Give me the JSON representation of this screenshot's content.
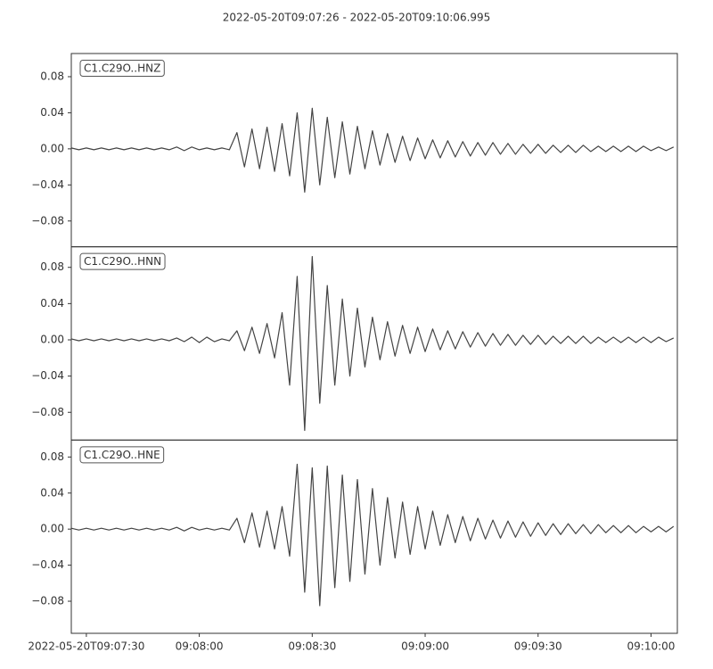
{
  "title": "2022-05-20T09:07:26  -  2022-05-20T09:10:06.995",
  "chart_data": [
    {
      "type": "line",
      "label": "C1.C29O..HNZ",
      "x": [
        "2022-05-20T09:07:26",
        "2022-05-20T09:07:28",
        "2022-05-20T09:07:30",
        "2022-05-20T09:07:32",
        "2022-05-20T09:07:34",
        "2022-05-20T09:07:36",
        "2022-05-20T09:07:38",
        "2022-05-20T09:07:40",
        "2022-05-20T09:07:42",
        "2022-05-20T09:07:44",
        "2022-05-20T09:07:46",
        "2022-05-20T09:07:48",
        "2022-05-20T09:07:50",
        "2022-05-20T09:07:52",
        "2022-05-20T09:07:54",
        "2022-05-20T09:07:56",
        "2022-05-20T09:07:58",
        "2022-05-20T09:08:00",
        "2022-05-20T09:08:02",
        "2022-05-20T09:08:04",
        "2022-05-20T09:08:06",
        "2022-05-20T09:08:08",
        "2022-05-20T09:08:10",
        "2022-05-20T09:08:12",
        "2022-05-20T09:08:14",
        "2022-05-20T09:08:16",
        "2022-05-20T09:08:18",
        "2022-05-20T09:08:20",
        "2022-05-20T09:08:22",
        "2022-05-20T09:08:24",
        "2022-05-20T09:08:26",
        "2022-05-20T09:08:28",
        "2022-05-20T09:08:30",
        "2022-05-20T09:08:32",
        "2022-05-20T09:08:34",
        "2022-05-20T09:08:36",
        "2022-05-20T09:08:38",
        "2022-05-20T09:08:40",
        "2022-05-20T09:08:42",
        "2022-05-20T09:08:44",
        "2022-05-20T09:08:46",
        "2022-05-20T09:08:48",
        "2022-05-20T09:08:50",
        "2022-05-20T09:08:52",
        "2022-05-20T09:08:54",
        "2022-05-20T09:08:56",
        "2022-05-20T09:08:58",
        "2022-05-20T09:09:00",
        "2022-05-20T09:09:02",
        "2022-05-20T09:09:04",
        "2022-05-20T09:09:06",
        "2022-05-20T09:09:08",
        "2022-05-20T09:09:10",
        "2022-05-20T09:09:12",
        "2022-05-20T09:09:14",
        "2022-05-20T09:09:16",
        "2022-05-20T09:09:18",
        "2022-05-20T09:09:20",
        "2022-05-20T09:09:22",
        "2022-05-20T09:09:24",
        "2022-05-20T09:09:26",
        "2022-05-20T09:09:28",
        "2022-05-20T09:09:30",
        "2022-05-20T09:09:32",
        "2022-05-20T09:09:34",
        "2022-05-20T09:09:36",
        "2022-05-20T09:09:38",
        "2022-05-20T09:09:40",
        "2022-05-20T09:09:42",
        "2022-05-20T09:09:44",
        "2022-05-20T09:09:46",
        "2022-05-20T09:09:48",
        "2022-05-20T09:09:50",
        "2022-05-20T09:09:52",
        "2022-05-20T09:09:54",
        "2022-05-20T09:09:56",
        "2022-05-20T09:09:58",
        "2022-05-20T09:10:00",
        "2022-05-20T09:10:02",
        "2022-05-20T09:10:04",
        "2022-05-20T09:10:06"
      ],
      "series": [
        {
          "color": "#444444",
          "values": [
            0.001,
            -0.001,
            0.001,
            -0.001,
            0.001,
            -0.001,
            0.001,
            -0.001,
            0.001,
            -0.001,
            0.001,
            -0.001,
            0.001,
            -0.001,
            0.002,
            -0.002,
            0.002,
            -0.001,
            0.001,
            -0.001,
            0.001,
            -0.001,
            0.018,
            -0.02,
            0.022,
            -0.022,
            0.024,
            -0.025,
            0.028,
            -0.03,
            0.04,
            -0.048,
            0.045,
            -0.04,
            0.035,
            -0.032,
            0.03,
            -0.028,
            0.025,
            -0.022,
            0.02,
            -0.018,
            0.017,
            -0.015,
            0.014,
            -0.013,
            0.012,
            -0.011,
            0.01,
            -0.01,
            0.009,
            -0.009,
            0.008,
            -0.008,
            0.007,
            -0.007,
            0.007,
            -0.006,
            0.006,
            -0.006,
            0.005,
            -0.005,
            0.005,
            -0.005,
            0.004,
            -0.004,
            0.004,
            -0.004,
            0.004,
            -0.003,
            0.003,
            -0.003,
            0.003,
            -0.003,
            0.003,
            -0.003,
            0.003,
            -0.002,
            0.002,
            -0.002,
            0.002
          ]
        }
      ],
      "xlim": [
        "2022-05-20T09:07:26",
        "2022-05-20T09:10:06.995"
      ],
      "ylim": [
        -0.1086,
        0.1057
      ],
      "yticks": [
        {
          "value": -0.08,
          "label": "−0.08"
        },
        {
          "value": -0.04,
          "label": "−0.04"
        },
        {
          "value": 0,
          "label": "0.00"
        },
        {
          "value": 0.04,
          "label": "0.04"
        },
        {
          "value": 0.08,
          "label": "0.08"
        }
      ]
    },
    {
      "type": "line",
      "label": "C1.C29O..HNN",
      "x": [
        "2022-05-20T09:07:26",
        "2022-05-20T09:07:28",
        "2022-05-20T09:07:30",
        "2022-05-20T09:07:32",
        "2022-05-20T09:07:34",
        "2022-05-20T09:07:36",
        "2022-05-20T09:07:38",
        "2022-05-20T09:07:40",
        "2022-05-20T09:07:42",
        "2022-05-20T09:07:44",
        "2022-05-20T09:07:46",
        "2022-05-20T09:07:48",
        "2022-05-20T09:07:50",
        "2022-05-20T09:07:52",
        "2022-05-20T09:07:54",
        "2022-05-20T09:07:56",
        "2022-05-20T09:07:58",
        "2022-05-20T09:08:00",
        "2022-05-20T09:08:02",
        "2022-05-20T09:08:04",
        "2022-05-20T09:08:06",
        "2022-05-20T09:08:08",
        "2022-05-20T09:08:10",
        "2022-05-20T09:08:12",
        "2022-05-20T09:08:14",
        "2022-05-20T09:08:16",
        "2022-05-20T09:08:18",
        "2022-05-20T09:08:20",
        "2022-05-20T09:08:22",
        "2022-05-20T09:08:24",
        "2022-05-20T09:08:26",
        "2022-05-20T09:08:28",
        "2022-05-20T09:08:30",
        "2022-05-20T09:08:32",
        "2022-05-20T09:08:34",
        "2022-05-20T09:08:36",
        "2022-05-20T09:08:38",
        "2022-05-20T09:08:40",
        "2022-05-20T09:08:42",
        "2022-05-20T09:08:44",
        "2022-05-20T09:08:46",
        "2022-05-20T09:08:48",
        "2022-05-20T09:08:50",
        "2022-05-20T09:08:52",
        "2022-05-20T09:08:54",
        "2022-05-20T09:08:56",
        "2022-05-20T09:08:58",
        "2022-05-20T09:09:00",
        "2022-05-20T09:09:02",
        "2022-05-20T09:09:04",
        "2022-05-20T09:09:06",
        "2022-05-20T09:09:08",
        "2022-05-20T09:09:10",
        "2022-05-20T09:09:12",
        "2022-05-20T09:09:14",
        "2022-05-20T09:09:16",
        "2022-05-20T09:09:18",
        "2022-05-20T09:09:20",
        "2022-05-20T09:09:22",
        "2022-05-20T09:09:24",
        "2022-05-20T09:09:26",
        "2022-05-20T09:09:28",
        "2022-05-20T09:09:30",
        "2022-05-20T09:09:32",
        "2022-05-20T09:09:34",
        "2022-05-20T09:09:36",
        "2022-05-20T09:09:38",
        "2022-05-20T09:09:40",
        "2022-05-20T09:09:42",
        "2022-05-20T09:09:44",
        "2022-05-20T09:09:46",
        "2022-05-20T09:09:48",
        "2022-05-20T09:09:50",
        "2022-05-20T09:09:52",
        "2022-05-20T09:09:54",
        "2022-05-20T09:09:56",
        "2022-05-20T09:09:58",
        "2022-05-20T09:10:00",
        "2022-05-20T09:10:02",
        "2022-05-20T09:10:04",
        "2022-05-20T09:10:06"
      ],
      "series": [
        {
          "color": "#444444",
          "values": [
            0.001,
            -0.001,
            0.001,
            -0.001,
            0.001,
            -0.001,
            0.001,
            -0.001,
            0.001,
            -0.001,
            0.001,
            -0.001,
            0.001,
            -0.001,
            0.002,
            -0.002,
            0.003,
            -0.003,
            0.003,
            -0.002,
            0.001,
            -0.001,
            0.01,
            -0.012,
            0.014,
            -0.015,
            0.018,
            -0.02,
            0.03,
            -0.05,
            0.07,
            -0.1,
            0.092,
            -0.07,
            0.06,
            -0.05,
            0.045,
            -0.04,
            0.035,
            -0.03,
            0.025,
            -0.022,
            0.02,
            -0.018,
            0.016,
            -0.015,
            0.014,
            -0.013,
            0.012,
            -0.011,
            0.01,
            -0.01,
            0.009,
            -0.008,
            0.008,
            -0.007,
            0.007,
            -0.006,
            0.006,
            -0.006,
            0.005,
            -0.005,
            0.005,
            -0.005,
            0.004,
            -0.004,
            0.004,
            -0.004,
            0.004,
            -0.004,
            0.003,
            -0.003,
            0.003,
            -0.003,
            0.003,
            -0.003,
            0.003,
            -0.003,
            0.003,
            -0.002,
            0.002
          ]
        }
      ],
      "xlim": [
        "2022-05-20T09:07:26",
        "2022-05-20T09:10:06.995"
      ],
      "ylim": [
        -0.1106,
        0.1027
      ],
      "yticks": [
        {
          "value": -0.08,
          "label": "−0.08"
        },
        {
          "value": -0.04,
          "label": "−0.04"
        },
        {
          "value": 0,
          "label": "0.00"
        },
        {
          "value": 0.04,
          "label": "0.04"
        },
        {
          "value": 0.08,
          "label": "0.08"
        }
      ]
    },
    {
      "type": "line",
      "label": "C1.C29O..HNE",
      "x": [
        "2022-05-20T09:07:26",
        "2022-05-20T09:07:28",
        "2022-05-20T09:07:30",
        "2022-05-20T09:07:32",
        "2022-05-20T09:07:34",
        "2022-05-20T09:07:36",
        "2022-05-20T09:07:38",
        "2022-05-20T09:07:40",
        "2022-05-20T09:07:42",
        "2022-05-20T09:07:44",
        "2022-05-20T09:07:46",
        "2022-05-20T09:07:48",
        "2022-05-20T09:07:50",
        "2022-05-20T09:07:52",
        "2022-05-20T09:07:54",
        "2022-05-20T09:07:56",
        "2022-05-20T09:07:58",
        "2022-05-20T09:08:00",
        "2022-05-20T09:08:02",
        "2022-05-20T09:08:04",
        "2022-05-20T09:08:06",
        "2022-05-20T09:08:08",
        "2022-05-20T09:08:10",
        "2022-05-20T09:08:12",
        "2022-05-20T09:08:14",
        "2022-05-20T09:08:16",
        "2022-05-20T09:08:18",
        "2022-05-20T09:08:20",
        "2022-05-20T09:08:22",
        "2022-05-20T09:08:24",
        "2022-05-20T09:08:26",
        "2022-05-20T09:08:28",
        "2022-05-20T09:08:30",
        "2022-05-20T09:08:32",
        "2022-05-20T09:08:34",
        "2022-05-20T09:08:36",
        "2022-05-20T09:08:38",
        "2022-05-20T09:08:40",
        "2022-05-20T09:08:42",
        "2022-05-20T09:08:44",
        "2022-05-20T09:08:46",
        "2022-05-20T09:08:48",
        "2022-05-20T09:08:50",
        "2022-05-20T09:08:52",
        "2022-05-20T09:08:54",
        "2022-05-20T09:08:56",
        "2022-05-20T09:08:58",
        "2022-05-20T09:09:00",
        "2022-05-20T09:09:02",
        "2022-05-20T09:09:04",
        "2022-05-20T09:09:06",
        "2022-05-20T09:09:08",
        "2022-05-20T09:09:10",
        "2022-05-20T09:09:12",
        "2022-05-20T09:09:14",
        "2022-05-20T09:09:16",
        "2022-05-20T09:09:18",
        "2022-05-20T09:09:20",
        "2022-05-20T09:09:22",
        "2022-05-20T09:09:24",
        "2022-05-20T09:09:26",
        "2022-05-20T09:09:28",
        "2022-05-20T09:09:30",
        "2022-05-20T09:09:32",
        "2022-05-20T09:09:34",
        "2022-05-20T09:09:36",
        "2022-05-20T09:09:38",
        "2022-05-20T09:09:40",
        "2022-05-20T09:09:42",
        "2022-05-20T09:09:44",
        "2022-05-20T09:09:46",
        "2022-05-20T09:09:48",
        "2022-05-20T09:09:50",
        "2022-05-20T09:09:52",
        "2022-05-20T09:09:54",
        "2022-05-20T09:09:56",
        "2022-05-20T09:09:58",
        "2022-05-20T09:10:00",
        "2022-05-20T09:10:02",
        "2022-05-20T09:10:04",
        "2022-05-20T09:10:06"
      ],
      "series": [
        {
          "color": "#444444",
          "values": [
            0.001,
            -0.001,
            0.001,
            -0.001,
            0.001,
            -0.001,
            0.001,
            -0.001,
            0.001,
            -0.001,
            0.001,
            -0.001,
            0.001,
            -0.001,
            0.002,
            -0.002,
            0.002,
            -0.001,
            0.001,
            -0.001,
            0.001,
            -0.001,
            0.012,
            -0.015,
            0.018,
            -0.02,
            0.02,
            -0.022,
            0.025,
            -0.03,
            0.072,
            -0.07,
            0.068,
            -0.085,
            0.07,
            -0.065,
            0.06,
            -0.058,
            0.055,
            -0.05,
            0.045,
            -0.04,
            0.035,
            -0.032,
            0.03,
            -0.028,
            0.025,
            -0.022,
            0.02,
            -0.018,
            0.016,
            -0.015,
            0.014,
            -0.013,
            0.012,
            -0.011,
            0.01,
            -0.01,
            0.009,
            -0.009,
            0.008,
            -0.008,
            0.007,
            -0.007,
            0.006,
            -0.006,
            0.006,
            -0.005,
            0.005,
            -0.005,
            0.005,
            -0.004,
            0.004,
            -0.004,
            0.004,
            -0.004,
            0.003,
            -0.003,
            0.003,
            -0.003,
            0.003
          ]
        }
      ],
      "xlim": [
        "2022-05-20T09:07:26",
        "2022-05-20T09:10:06.995"
      ],
      "ylim": [
        -0.1156,
        0.0988
      ],
      "yticks": [
        {
          "value": -0.08,
          "label": "−0.08"
        },
        {
          "value": -0.04,
          "label": "−0.04"
        },
        {
          "value": 0,
          "label": "0.00"
        },
        {
          "value": 0.04,
          "label": "0.04"
        },
        {
          "value": 0.08,
          "label": "0.08"
        }
      ],
      "xticks": [
        "2022-05-20T09:07:30",
        {
          "value": "2022-05-20T09:08:00",
          "label": "09:08:00"
        },
        {
          "value": "2022-05-20T09:08:30",
          "label": "09:08:30"
        },
        {
          "value": "2022-05-20T09:09:00",
          "label": "09:09:00"
        },
        {
          "value": "2022-05-20T09:09:30",
          "label": "09:09:30"
        },
        {
          "value": "2022-05-20T09:10:00",
          "label": "09:10:00"
        }
      ]
    }
  ]
}
